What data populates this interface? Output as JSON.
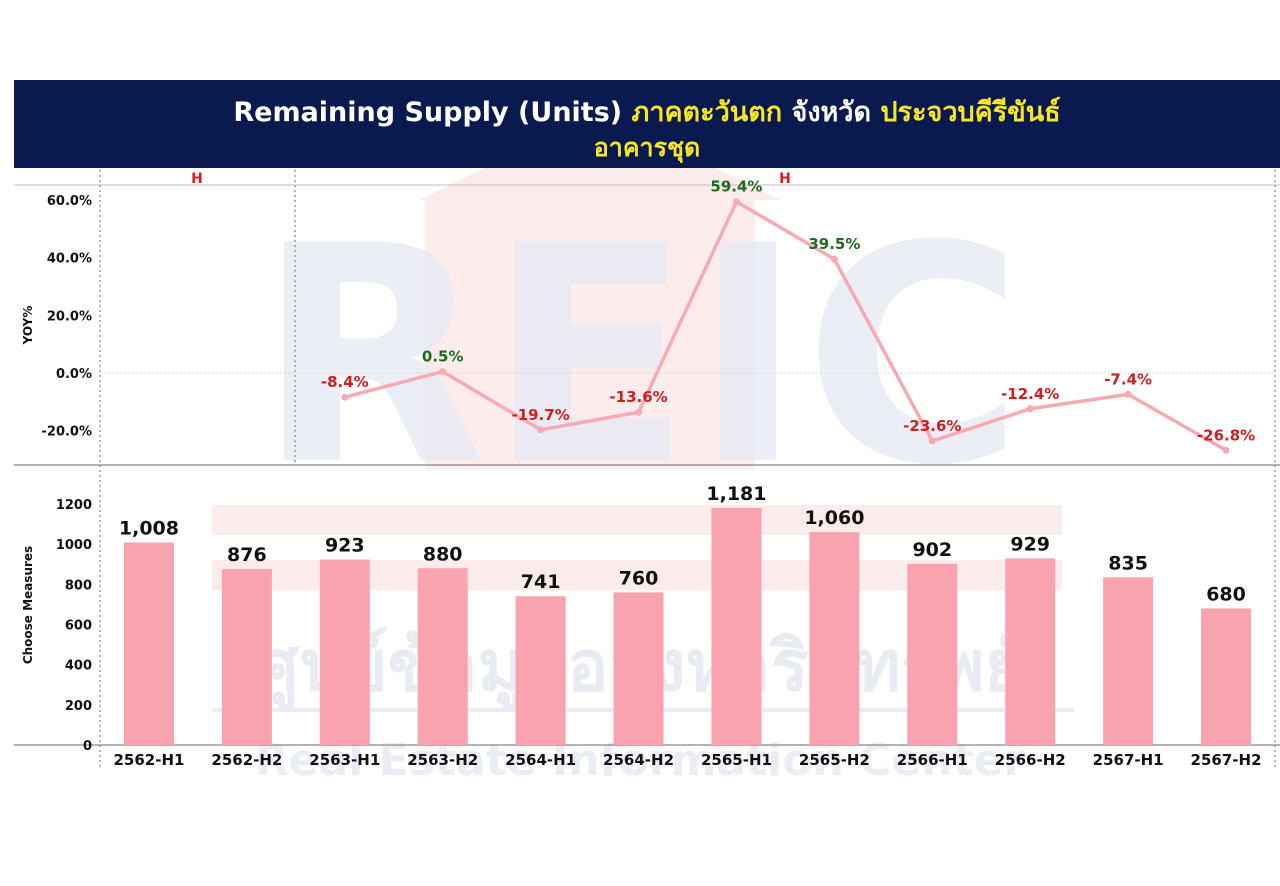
{
  "title": {
    "part1": "Remaining Supply (Units)",
    "region": "ภาคตะวันตก",
    "mid": "จังหวัด",
    "province": "ประจวบคีรีขันธ์",
    "line2": "อาคารชุด"
  },
  "watermark": {
    "logo": "REIC",
    "thai": "ศูนย์ข้อมูลอสังหาริมทรัพย์",
    "english": "Real Estate Information Center"
  },
  "colors": {
    "bar": "#f9a3af",
    "line": "#f7aab3",
    "positive": "#1e6b1e",
    "negative": "#cc1f1f",
    "title_bg": "#0b1a4e"
  },
  "chart_data": [
    {
      "type": "line",
      "ylabel": "YOY%",
      "ylim": [
        -25,
        62
      ],
      "yticks": [
        "60.0%",
        "40.0%",
        "20.0%",
        "0.0%",
        "-20.0%"
      ],
      "ytick_values": [
        60,
        40,
        20,
        0,
        -20
      ],
      "groups": [
        {
          "label": "H",
          "from": 0,
          "to": 1
        },
        {
          "label": "H",
          "from": 2,
          "to": 11
        }
      ],
      "categories": [
        "2563-H1",
        "2563-H2",
        "2564-H1",
        "2564-H2",
        "2565-H1",
        "2565-H2",
        "2566-H1",
        "2566-H2",
        "2567-H1",
        "2567-H2"
      ],
      "values": [
        -8.4,
        0.5,
        -19.7,
        -13.6,
        59.4,
        39.5,
        -23.6,
        -12.4,
        -7.4,
        -26.8
      ],
      "labels": [
        "-8.4%",
        "0.5%",
        "-19.7%",
        "-13.6%",
        "59.4%",
        "39.5%",
        "-23.6%",
        "-12.4%",
        "-7.4%",
        "-26.8%"
      ]
    },
    {
      "type": "bar",
      "ylabel": "Choose Measures",
      "ylim": [
        0,
        1300
      ],
      "yticks": [
        "1200",
        "1000",
        "800",
        "600",
        "400",
        "200",
        "0"
      ],
      "ytick_values": [
        1200,
        1000,
        800,
        600,
        400,
        200,
        0
      ],
      "categories": [
        "2562-H1",
        "2562-H2",
        "2563-H1",
        "2563-H2",
        "2564-H1",
        "2564-H2",
        "2565-H1",
        "2565-H2",
        "2566-H1",
        "2566-H2",
        "2567-H1",
        "2567-H2"
      ],
      "values": [
        1008,
        876,
        923,
        880,
        741,
        760,
        1181,
        1060,
        902,
        929,
        835,
        680
      ],
      "labels": [
        "1,008",
        "876",
        "923",
        "880",
        "741",
        "760",
        "1,181",
        "1,060",
        "902",
        "929",
        "835",
        "680"
      ]
    }
  ]
}
